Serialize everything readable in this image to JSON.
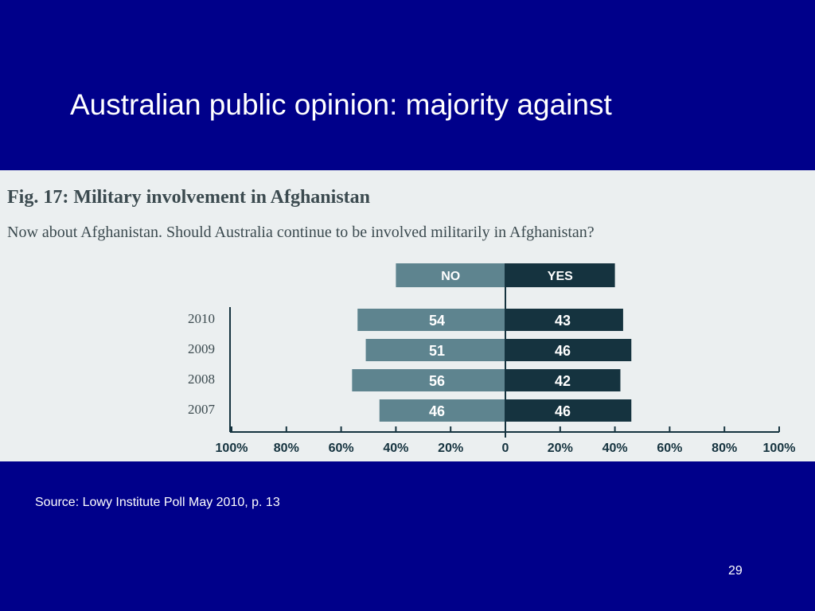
{
  "slide": {
    "title": "Australian public opinion: majority against",
    "source": "Source: Lowy Institute Poll May 2010, p. 13",
    "page_number": "29"
  },
  "figure": {
    "title": "Fig. 17: Military involvement in Afghanistan",
    "question": "Now about Afghanistan. Should Australia continue to be involved militarily in Afghanistan?"
  },
  "chart_data": {
    "type": "bar",
    "orientation": "horizontal-diverging",
    "categories": [
      "2010",
      "2009",
      "2008",
      "2007"
    ],
    "series": [
      {
        "name": "NO",
        "values": [
          54,
          51,
          56,
          46
        ],
        "color": "#5e848f",
        "direction": "left"
      },
      {
        "name": "YES",
        "values": [
          43,
          46,
          42,
          46
        ],
        "color": "#15333f",
        "direction": "right"
      }
    ],
    "x_tick_labels": [
      "100%",
      "80%",
      "60%",
      "40%",
      "20%",
      "0",
      "20%",
      "40%",
      "60%",
      "80%",
      "100%"
    ],
    "xlim": [
      -100,
      100
    ],
    "grid": false,
    "legend": "top-center"
  }
}
